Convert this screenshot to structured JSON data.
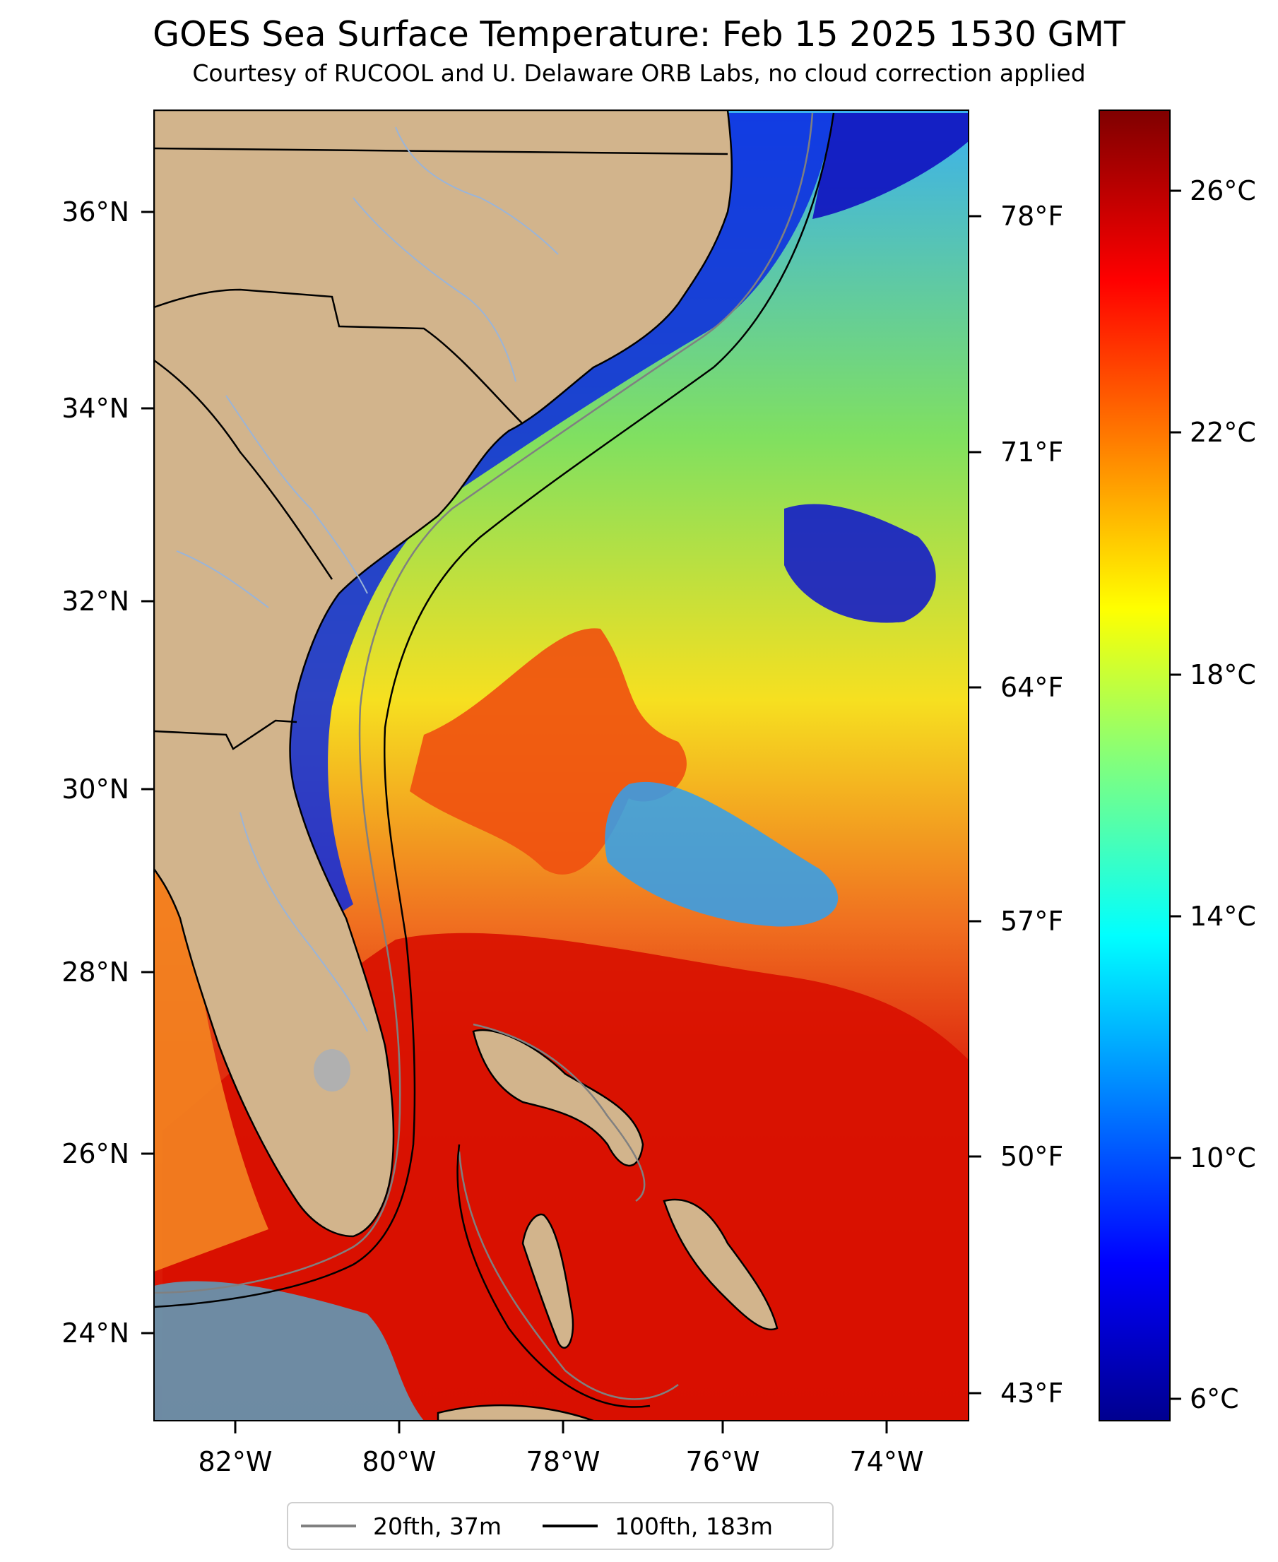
{
  "title": "GOES Sea Surface Temperature: Feb 15 2025 1530 GMT",
  "subtitle": "Courtesy of RUCOOL and U. Delaware ORB Labs, no cloud correction applied",
  "lat_ticks": [
    "24°N",
    "26°N",
    "28°N",
    "30°N",
    "32°N",
    "34°N",
    "36°N"
  ],
  "lon_ticks": [
    "82°W",
    "80°W",
    "78°W",
    "76°W",
    "74°W"
  ],
  "fahrenheit_ticks": [
    "43°F",
    "50°F",
    "57°F",
    "64°F",
    "71°F",
    "78°F"
  ],
  "colorbar_ticks": [
    "6°C",
    "10°C",
    "14°C",
    "18°C",
    "22°C",
    "26°C"
  ],
  "legend": [
    {
      "label": "20fth, 37m",
      "color": "#808080"
    },
    {
      "label": "100fth, 183m",
      "color": "#000000"
    }
  ],
  "colors": {
    "land": "#d2b48c",
    "cold": "#0000c8",
    "warm": "#dc1400",
    "isobath_20": "#808080",
    "isobath_100": "#000000",
    "rivers": "#9ab4d8"
  }
}
